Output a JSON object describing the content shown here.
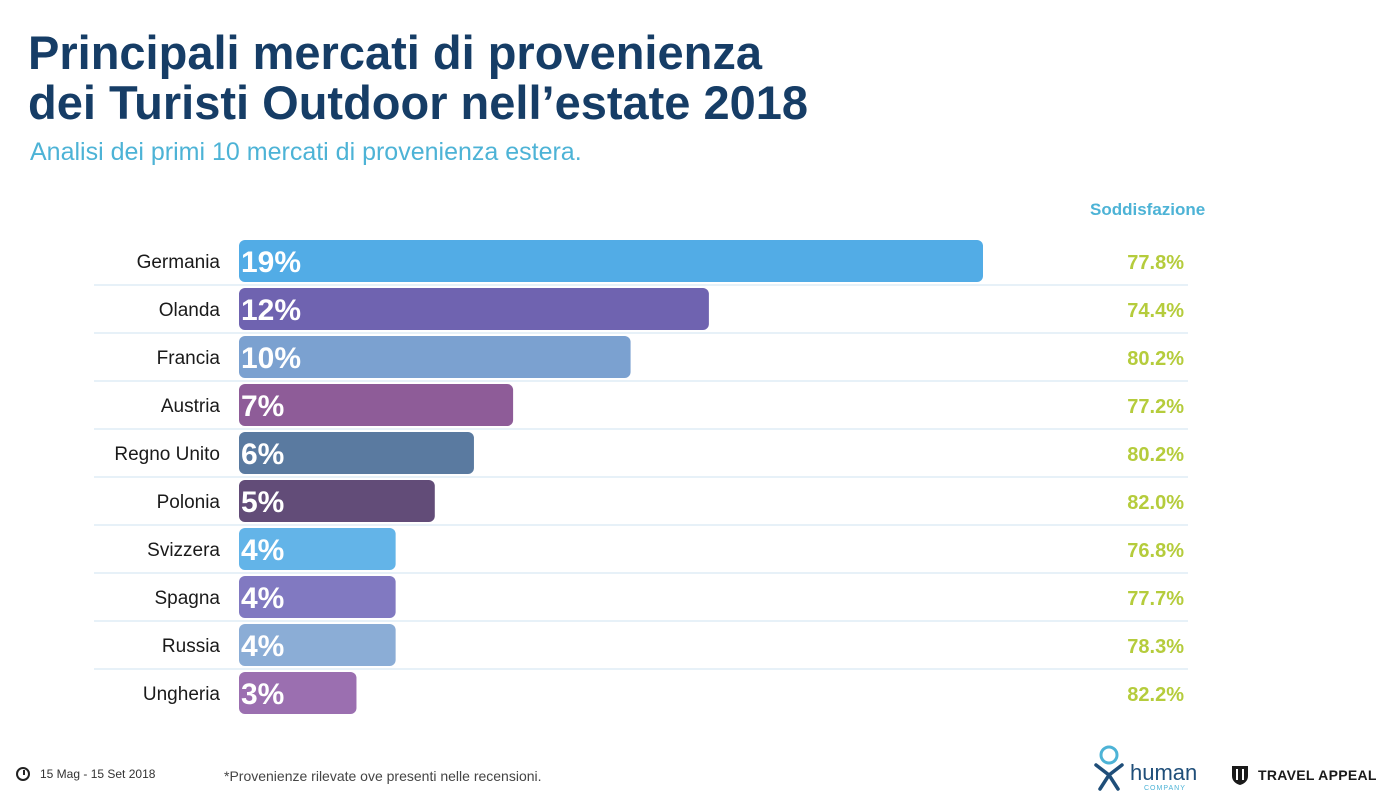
{
  "header": {
    "title_line1": "Principali mercati di provenienza",
    "title_line2": "dei Turisti Outdoor nell’estate 2018",
    "subtitle": "Analisi dei primi 10 mercati di provenienza estera."
  },
  "satisfaction_header": "Soddisfazione",
  "chart_data": {
    "type": "bar",
    "orientation": "horizontal",
    "categories": [
      "Germania",
      "Olanda",
      "Francia",
      "Austria",
      "Regno Unito",
      "Polonia",
      "Svizzera",
      "Spagna",
      "Russia",
      "Ungheria"
    ],
    "values": [
      19,
      12,
      10,
      7,
      6,
      5,
      4,
      4,
      4,
      3
    ],
    "value_labels": [
      "19%",
      "12%",
      "10%",
      "7%",
      "6%",
      "5%",
      "4%",
      "4%",
      "4%",
      "3%"
    ],
    "satisfaction": [
      "77.8%",
      "74.4%",
      "80.2%",
      "77.2%",
      "80.2%",
      "82.0%",
      "76.8%",
      "77.7%",
      "78.3%",
      "82.2%"
    ],
    "bar_colors": [
      "#52ace6",
      "#6f63b0",
      "#7ba1d0",
      "#8e5c98",
      "#5a7aa0",
      "#624c78",
      "#63b4e8",
      "#8179c1",
      "#8badd6",
      "#9b6fb0"
    ],
    "satisfaction_color": "#b5cc3c",
    "xlim": [
      0,
      19
    ]
  },
  "footer": {
    "date_range": "15 Mag - 15 Set 2018",
    "footnote": "*Provenienze rilevate ove presenti nelle recensioni.",
    "logo_human": "human",
    "logo_human_sub": "COMPANY",
    "logo_travel": "TRAVEL APPEAL"
  }
}
